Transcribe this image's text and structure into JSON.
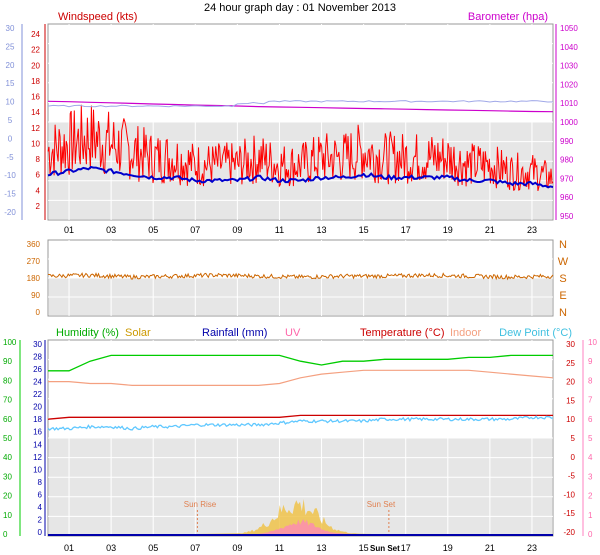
{
  "title": "24 hour graph day : 01 November 2013",
  "x_ticks": [
    "01",
    "03",
    "05",
    "07",
    "09",
    "11",
    "13",
    "15",
    "17",
    "19",
    "21",
    "23"
  ],
  "colors": {
    "wind": "#ff0000",
    "wind_dir": "#cc6600",
    "baro": "#cc00cc",
    "wind_avg": "#0000cc",
    "temp": "#cc0000",
    "indoor": "#f4a080",
    "dew": "#60c8ff",
    "humidity": "#00cc00",
    "solar": "#f0c040",
    "uv": "#ff80c0",
    "rain": "#0000aa",
    "panel_bg": "#d9d9d9",
    "grid": "#ffffff",
    "axis_left1": "#8090d8",
    "axis_left3": "#00cc00"
  },
  "panel1": {
    "legend_wind": "Windspeed (kts)",
    "legend_baro": "Barometer (hpa)",
    "left_outer_ticks": [
      "30",
      "25",
      "20",
      "15",
      "10",
      "5",
      "0",
      "-5",
      "-10",
      "-15",
      "-20"
    ],
    "left_inner_ticks": [
      "24",
      "22",
      "20",
      "18",
      "16",
      "14",
      "12",
      "10",
      "8",
      "6",
      "4",
      "2"
    ],
    "right_ticks": [
      "1050",
      "1040",
      "1030",
      "1020",
      "1010",
      "1000",
      "990",
      "980",
      "970",
      "960",
      "950"
    ]
  },
  "panel2": {
    "left_ticks": [
      "360",
      "270",
      "180",
      "90",
      "0"
    ],
    "right_labels": [
      "N",
      "W",
      "S",
      "E",
      "N"
    ]
  },
  "panel3": {
    "legend": {
      "humidity": "Humidity (%)",
      "solar": "Solar",
      "rain": "Rainfall (mm)",
      "uv": "UV",
      "temp": "Temperature (°C)",
      "indoor": "Indoor",
      "dew": "Dew Point (°C)"
    },
    "humidity_ticks": [
      "100",
      "90",
      "80",
      "70",
      "60",
      "50",
      "40",
      "30",
      "20",
      "10",
      "0"
    ],
    "rain_ticks": [
      "30",
      "28",
      "26",
      "24",
      "22",
      "20",
      "18",
      "16",
      "14",
      "12",
      "10",
      "8",
      "6",
      "4",
      "2",
      "0"
    ],
    "temp_ticks": [
      "30",
      "25",
      "20",
      "15",
      "10",
      "5",
      "0",
      "-5",
      "-10",
      "-15",
      "-20"
    ],
    "uv_ticks": [
      "10",
      "9",
      "8",
      "7",
      "6",
      "5",
      "4",
      "3",
      "2",
      "1",
      "0"
    ],
    "sunrise_label": "Sun Rise",
    "sunset_label": "Sun Set",
    "sun_marker": "Sun",
    "sun_marker2": "Set"
  },
  "chart_data": [
    {
      "type": "line",
      "title": "24 hour graph day : 01 November 2013",
      "x_hours": [
        0,
        1,
        2,
        3,
        4,
        5,
        6,
        7,
        8,
        9,
        10,
        11,
        12,
        13,
        14,
        15,
        16,
        17,
        18,
        19,
        20,
        21,
        22,
        23,
        24
      ],
      "series": [
        {
          "name": "Windspeed (kts)",
          "axis": "left",
          "values": [
            8,
            9,
            10,
            9,
            8,
            7,
            7,
            6,
            6,
            6,
            7,
            6,
            6,
            7,
            7,
            8,
            7,
            7,
            7,
            7,
            6,
            6,
            5,
            5,
            4
          ]
        },
        {
          "name": "Barometer (hpa)",
          "axis": "right",
          "values": [
            1011,
            1010.8,
            1010.5,
            1010.2,
            1009.9,
            1009.6,
            1009.3,
            1009,
            1008.8,
            1008.5,
            1008.2,
            1008,
            1007.8,
            1007.6,
            1007.4,
            1007.2,
            1007,
            1006.8,
            1006.6,
            1006.4,
            1006.2,
            1006,
            1005.8,
            1005.6,
            1005.5
          ]
        }
      ],
      "ylim_left": [
        0,
        25
      ],
      "ylim_right": [
        950,
        1050
      ]
    },
    {
      "type": "line",
      "x_hours": [
        0,
        2,
        4,
        6,
        8,
        10,
        12,
        14,
        16,
        18,
        20,
        22,
        24
      ],
      "series": [
        {
          "values": [
            190,
            195,
            185,
            190,
            195,
            190,
            185,
            190,
            190,
            195,
            190,
            185,
            190
          ]
        }
      ],
      "ylim": [
        0,
        360
      ]
    },
    {
      "type": "line",
      "x_hours": [
        0,
        1,
        2,
        3,
        4,
        5,
        6,
        7,
        8,
        9,
        10,
        11,
        12,
        13,
        14,
        15,
        16,
        17,
        18,
        19,
        20,
        21,
        22,
        23,
        24
      ],
      "series": [
        {
          "name": "Humidity (%)",
          "axis": "humidity",
          "values": [
            85,
            85,
            90,
            93,
            93,
            93,
            93,
            93,
            93,
            93,
            93,
            93,
            90,
            88,
            90,
            90,
            91,
            91,
            91,
            91,
            92,
            92,
            93,
            93,
            93
          ]
        },
        {
          "name": "Temperature (°C)",
          "axis": "temp",
          "values": [
            10,
            10.5,
            10.5,
            10.5,
            10.5,
            10.5,
            10.5,
            10.5,
            10.5,
            10.5,
            10.5,
            10.5,
            11,
            11,
            11,
            11,
            11,
            11,
            11,
            11,
            11,
            11,
            11,
            11,
            11
          ]
        },
        {
          "name": "Indoor",
          "axis": "temp",
          "values": [
            20,
            20,
            19.5,
            19.5,
            19,
            19,
            19,
            19,
            19,
            19,
            19,
            19.5,
            21,
            22,
            22.5,
            23,
            23,
            23,
            23,
            23,
            23,
            22.5,
            22,
            21.5,
            21
          ]
        },
        {
          "name": "Dew Point (°C)",
          "axis": "temp",
          "values": [
            7.5,
            7.5,
            8,
            8,
            7.5,
            8,
            8,
            8.5,
            8.5,
            8.5,
            8.5,
            9,
            9.5,
            9.5,
            9.5,
            9.5,
            10,
            10,
            10,
            10,
            10,
            10,
            10,
            10.5,
            10.5
          ]
        },
        {
          "name": "Rainfall (mm)",
          "axis": "rain",
          "values": [
            0,
            0,
            0,
            0,
            0,
            0,
            0,
            0,
            0,
            0,
            0,
            0,
            0,
            0,
            0,
            0,
            0,
            0,
            0,
            0,
            0,
            0,
            0,
            0,
            0
          ]
        }
      ],
      "ylim_humidity": [
        0,
        100
      ],
      "ylim_temp": [
        -20,
        30
      ],
      "ylim_rain": [
        0,
        30
      ],
      "ylim_uv": [
        0,
        10
      ]
    }
  ]
}
